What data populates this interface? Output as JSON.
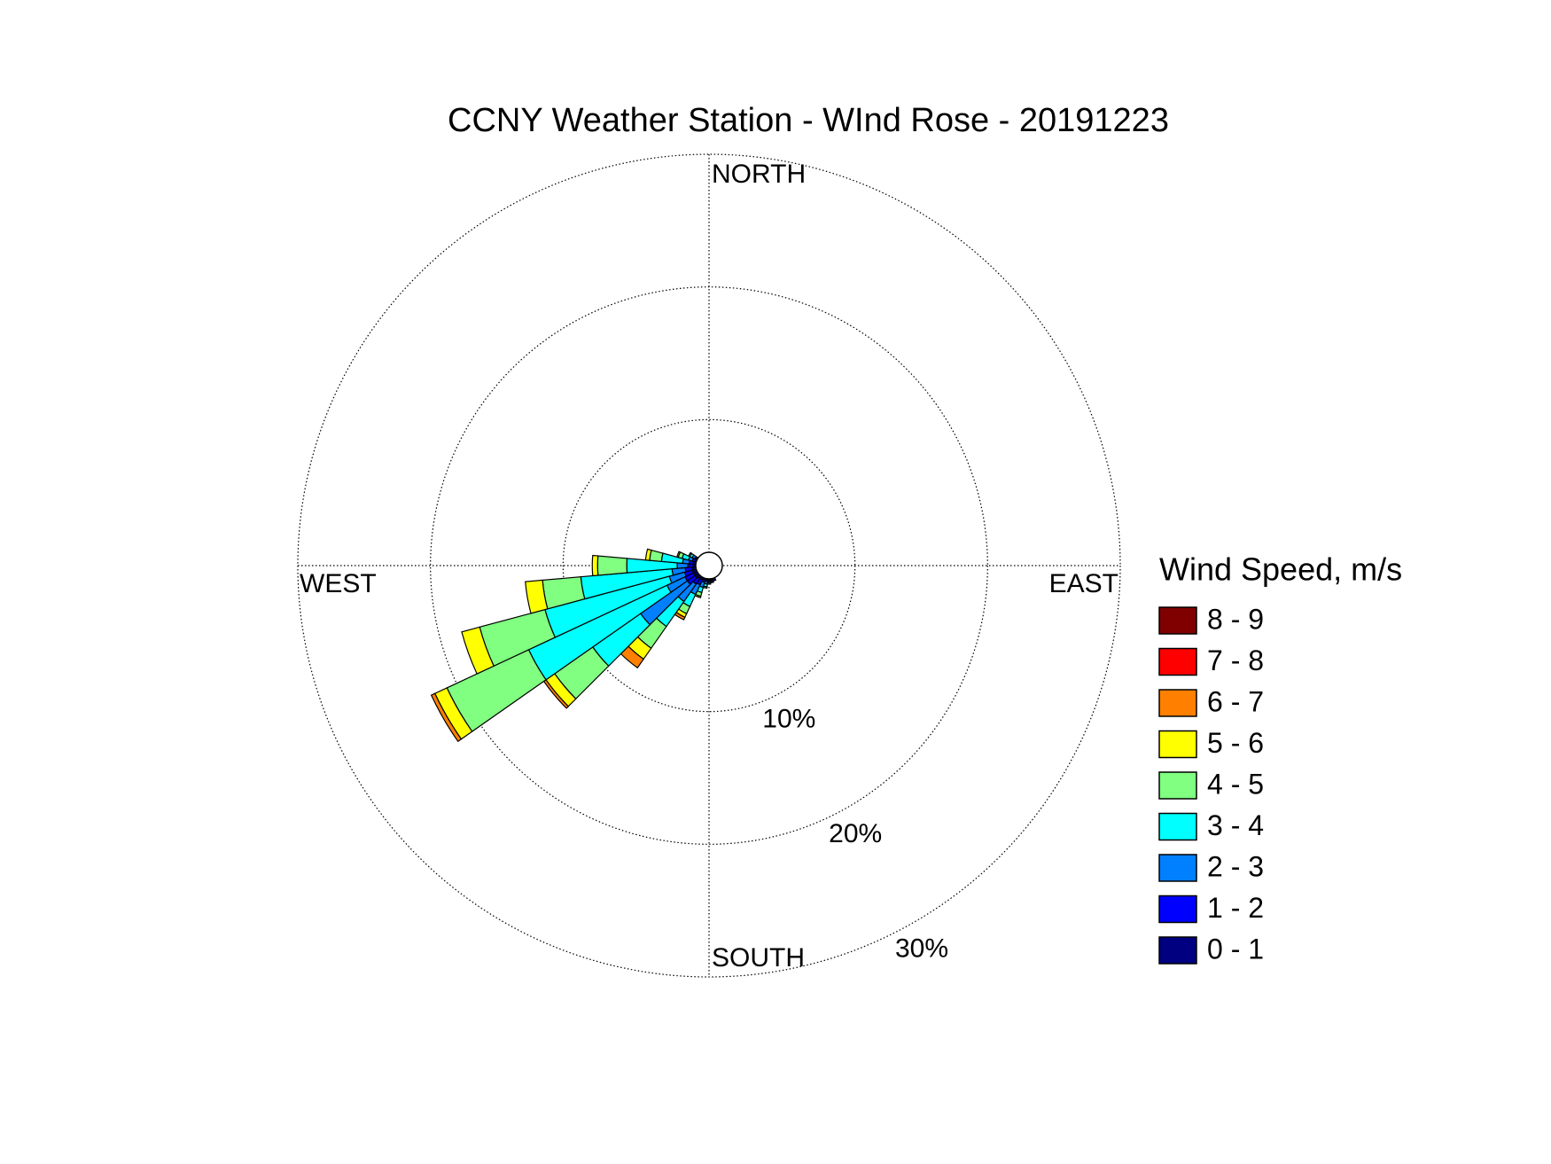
{
  "chart_data": {
    "type": "windrose",
    "title": "CCNY Weather Station - WInd Rose - 20191223",
    "legend_title": "Wind Speed, m/s",
    "direction_labels": [
      "NORTH",
      "EAST",
      "SOUTH",
      "WEST"
    ],
    "rlim": [
      0,
      30
    ],
    "rticks": [
      {
        "value": 10,
        "label": "10%"
      },
      {
        "value": 20,
        "label": "20%"
      },
      {
        "value": 30,
        "label": "30%"
      }
    ],
    "directions": [
      160,
      170,
      180,
      190,
      200,
      210,
      220,
      230,
      240,
      250,
      260,
      270,
      280,
      290,
      300
    ],
    "sector_width": 10,
    "series": [
      {
        "name": "0 - 1",
        "color": "#000080",
        "values": [
          0.1,
          0.1,
          0.1,
          0.1,
          0.1,
          0.2,
          0.2,
          0.3,
          0.3,
          0.3,
          0.3,
          0.2,
          0.2,
          0.1,
          0.1
        ]
      },
      {
        "name": "1 - 2",
        "color": "#0000ff",
        "values": [
          0.1,
          0.1,
          0.1,
          0.1,
          0.2,
          0.4,
          0.5,
          0.7,
          0.7,
          0.6,
          0.5,
          0.4,
          0.3,
          0.2,
          0.1
        ]
      },
      {
        "name": "2 - 3",
        "color": "#0080ff",
        "values": [
          0,
          0.1,
          0.1,
          0.2,
          0.4,
          0.8,
          1.6,
          4.3,
          1.5,
          1.2,
          1.0,
          0.8,
          0.5,
          0.3,
          0.2
        ]
      },
      {
        "name": "3 - 4",
        "color": "#00ffff",
        "values": [
          0,
          0,
          0.1,
          0.2,
          0.4,
          1.0,
          2.3,
          4.4,
          11.5,
          9.7,
          6.9,
          3.8,
          1.6,
          0.5,
          0.2
        ]
      },
      {
        "name": "4 - 5",
        "color": "#80ff80",
        "values": [
          0,
          0,
          0,
          0.1,
          0.3,
          0.6,
          2.0,
          3.5,
          6.8,
          5.1,
          2.9,
          2.2,
          0.9,
          0.3,
          0.1
        ]
      },
      {
        "name": "5 - 6",
        "color": "#ffff00",
        "values": [
          0,
          0,
          0,
          0,
          0.1,
          0.3,
          1.0,
          0.8,
          1.0,
          1.4,
          1.3,
          0.4,
          0.3,
          0.1,
          0
        ]
      },
      {
        "name": "6 - 7",
        "color": "#ff8000",
        "values": [
          0,
          0,
          0,
          0,
          0,
          0.2,
          0.8,
          0.2,
          0.3,
          0,
          0,
          0,
          0,
          0,
          0
        ]
      },
      {
        "name": "7 - 8",
        "color": "#ff0000",
        "values": [
          0,
          0,
          0,
          0,
          0,
          0,
          0,
          0,
          0,
          0,
          0,
          0,
          0,
          0,
          0
        ]
      },
      {
        "name": "8 - 9",
        "color": "#800000",
        "values": [
          0,
          0,
          0,
          0,
          0,
          0,
          0,
          0,
          0,
          0,
          0,
          0,
          0,
          0,
          0
        ]
      }
    ]
  }
}
